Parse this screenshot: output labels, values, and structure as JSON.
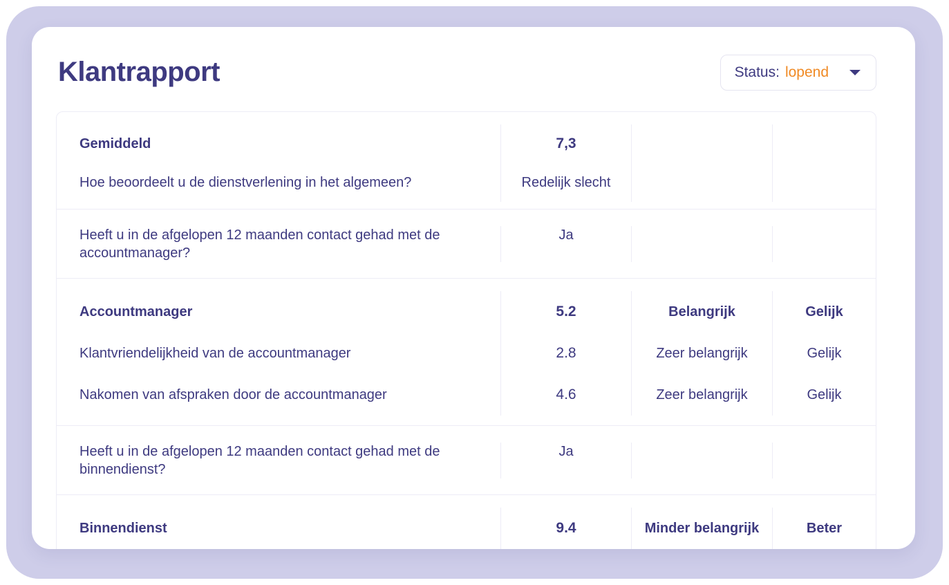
{
  "header": {
    "title": "Klantrapport",
    "status": {
      "label": "Status:",
      "value": "lopend"
    }
  },
  "colors": {
    "ink": "#3E3A80",
    "accent_orange": "#F08A24",
    "lavender": "#CECDE9",
    "table_border": "#EDECF6"
  },
  "icons": {
    "status_caret": "chevron-down"
  },
  "table": {
    "groups": [
      {
        "rows": [
          {
            "question": "Gemiddeld",
            "score": "7,3",
            "importance": "",
            "comparison": ""
          },
          {
            "question": "Hoe beoordeelt u de dienstverlening in het algemeen?",
            "score": "Redelijk slecht",
            "importance": "",
            "comparison": ""
          }
        ]
      },
      {
        "rows": [
          {
            "question": "Heeft u in de afgelopen 12 maanden contact gehad met de accountmanager?",
            "score": "Ja",
            "importance": "",
            "comparison": ""
          }
        ]
      },
      {
        "rows": [
          {
            "question": "Accountmanager",
            "score": "5.2",
            "importance": "Belangrijk",
            "comparison": "Gelijk"
          },
          {
            "question": "Klantvriendelijkheid van de accountmanager",
            "score": "2.8",
            "importance": "Zeer belangrijk",
            "comparison": "Gelijk"
          },
          {
            "question": "Nakomen van afspraken door de accountmanager",
            "score": "4.6",
            "importance": "Zeer belangrijk",
            "comparison": "Gelijk"
          }
        ]
      },
      {
        "rows": [
          {
            "question": "Heeft u in de afgelopen 12 maanden contact gehad met de binnendienst?",
            "score": "Ja",
            "importance": "",
            "comparison": ""
          }
        ]
      },
      {
        "rows": [
          {
            "question": "Binnendienst",
            "score": "9.4",
            "importance": "Minder belangrijk",
            "comparison": "Beter"
          }
        ]
      }
    ]
  }
}
